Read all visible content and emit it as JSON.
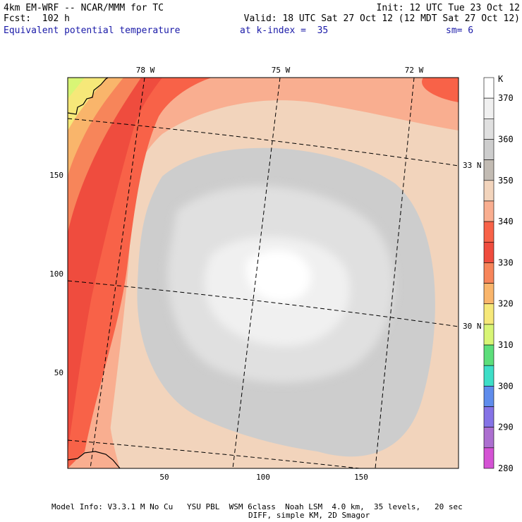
{
  "header": {
    "model": "4km EM-WRF -- NCAR/MMM for TC",
    "forecast": "Fcst:  102 h",
    "init": "Init: 12 UTC Tue 23 Oct 12",
    "valid": "Valid: 18 UTC Sat 27 Oct 12 (12 MDT Sat 27 Oct 12)",
    "field": "Equivalent potential temperature",
    "level": "at k-index =  35",
    "smoothing": "sm= 6"
  },
  "map": {
    "longitude_labels": [
      "78 W",
      "75 W",
      "72 W"
    ],
    "latitude_labels": [
      "33 N",
      "30 N"
    ],
    "x_ticks": [
      "50",
      "100",
      "150"
    ],
    "y_ticks": [
      "150",
      "100",
      "50"
    ],
    "grid_range": [
      0,
      200
    ]
  },
  "colorbar": {
    "unit": "K",
    "labels": [
      "370",
      "360",
      "350",
      "340",
      "330",
      "320",
      "310",
      "300",
      "290",
      "280"
    ],
    "colors": [
      "#ffffff",
      "#f0f0f0",
      "#e0e0e0",
      "#cdcdcd",
      "#c2bbb3",
      "#f2d4bc",
      "#f9ae90",
      "#f86248",
      "#ef4c3e",
      "#f7855a",
      "#f9b56b",
      "#f6e879",
      "#d8f575",
      "#5cde7a",
      "#3edec7",
      "#5f8cec",
      "#8573e6",
      "#ac6fd0",
      "#d453d4"
    ]
  },
  "footer": {
    "line1": "Model Info: V3.3.1 M No Cu   YSU PBL  WSM 6class  Noah LSM  4.0 km,  35 levels,   20 sec",
    "line2": "DIFF, simple KM, 2D Smagor"
  }
}
